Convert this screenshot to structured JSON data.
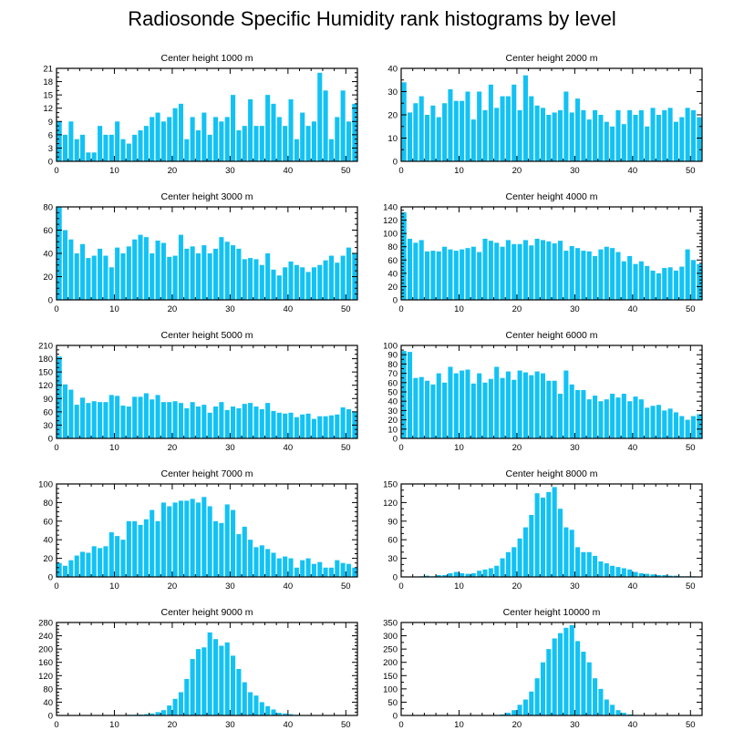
{
  "title": "Radiosonde Specific Humidity rank histograms by level",
  "colors": {
    "bar": "#12c2f4",
    "axis": "#000000",
    "background": "#ffffff"
  },
  "chart_data": [
    {
      "type": "bar",
      "title": "Center height 1000 m",
      "xlim": [
        0,
        52
      ],
      "ylim": [
        0,
        21
      ],
      "xticks": [
        0,
        10,
        20,
        30,
        40,
        50
      ],
      "yticks": [
        0,
        3,
        6,
        9,
        12,
        15,
        18,
        21
      ],
      "values": [
        9,
        6,
        9,
        5,
        6,
        2,
        2,
        8,
        6,
        6,
        9,
        5,
        4,
        6,
        7,
        8,
        10,
        11,
        9,
        10,
        12,
        13,
        5,
        10,
        7,
        11,
        6,
        10,
        9,
        10,
        15,
        7,
        8,
        14,
        8,
        8,
        15,
        13,
        10,
        8,
        14,
        5,
        11,
        8,
        9,
        20,
        16,
        5,
        10,
        16,
        9,
        13
      ]
    },
    {
      "type": "bar",
      "title": "Center height 2000 m",
      "xlim": [
        0,
        52
      ],
      "ylim": [
        0,
        40
      ],
      "xticks": [
        0,
        10,
        20,
        30,
        40,
        50
      ],
      "yticks": [
        0,
        10,
        20,
        30,
        40
      ],
      "values": [
        34,
        21,
        25,
        28,
        20,
        24,
        19,
        25,
        31,
        26,
        26,
        30,
        18,
        30,
        22,
        33,
        23,
        28,
        28,
        33,
        22,
        37,
        28,
        24,
        23,
        20,
        21,
        22,
        30,
        21,
        27,
        22,
        18,
        22,
        20,
        17,
        15,
        22,
        16,
        22,
        20,
        22,
        15,
        23,
        20,
        22,
        23,
        17,
        19,
        23,
        22,
        19
      ]
    },
    {
      "type": "bar",
      "title": "Center height 3000 m",
      "xlim": [
        0,
        52
      ],
      "ylim": [
        0,
        80
      ],
      "xticks": [
        0,
        10,
        20,
        30,
        40,
        50
      ],
      "yticks": [
        0,
        20,
        40,
        60,
        80
      ],
      "values": [
        80,
        60,
        52,
        40,
        48,
        36,
        38,
        44,
        38,
        28,
        45,
        40,
        46,
        52,
        56,
        54,
        40,
        51,
        49,
        37,
        38,
        56,
        44,
        46,
        40,
        47,
        40,
        44,
        54,
        50,
        47,
        44,
        35,
        36,
        35,
        30,
        40,
        26,
        21,
        28,
        33,
        30,
        28,
        24,
        28,
        30,
        34,
        38,
        32,
        38,
        45,
        40
      ]
    },
    {
      "type": "bar",
      "title": "Center height 4000 m",
      "xlim": [
        0,
        52
      ],
      "ylim": [
        0,
        140
      ],
      "xticks": [
        0,
        10,
        20,
        30,
        40,
        50
      ],
      "yticks": [
        0,
        20,
        40,
        60,
        80,
        100,
        120,
        140
      ],
      "values": [
        132,
        92,
        86,
        90,
        73,
        74,
        73,
        80,
        76,
        74,
        76,
        78,
        80,
        72,
        92,
        89,
        86,
        80,
        90,
        84,
        84,
        90,
        82,
        92,
        90,
        88,
        85,
        89,
        74,
        81,
        78,
        74,
        73,
        66,
        76,
        80,
        78,
        72,
        58,
        66,
        54,
        58,
        51,
        44,
        40,
        48,
        49,
        44,
        50,
        76,
        60,
        54
      ]
    },
    {
      "type": "bar",
      "title": "Center height 5000 m",
      "xlim": [
        0,
        52
      ],
      "ylim": [
        0,
        210
      ],
      "xticks": [
        0,
        10,
        20,
        30,
        40,
        50
      ],
      "yticks": [
        0,
        30,
        60,
        90,
        120,
        150,
        180,
        210
      ],
      "values": [
        185,
        122,
        110,
        76,
        92,
        80,
        84,
        82,
        82,
        98,
        96,
        74,
        72,
        94,
        94,
        102,
        88,
        98,
        82,
        82,
        84,
        80,
        68,
        82,
        72,
        76,
        58,
        72,
        82,
        64,
        72,
        68,
        78,
        80,
        72,
        66,
        80,
        62,
        58,
        56,
        58,
        48,
        54,
        56,
        44,
        50,
        50,
        52,
        54,
        70,
        66,
        60
      ]
    },
    {
      "type": "bar",
      "title": "Center height 6000 m",
      "xlim": [
        0,
        52
      ],
      "ylim": [
        0,
        100
      ],
      "xticks": [
        0,
        10,
        20,
        30,
        40,
        50
      ],
      "yticks": [
        0,
        10,
        20,
        30,
        40,
        50,
        60,
        70,
        80,
        90,
        100
      ],
      "values": [
        94,
        93,
        65,
        66,
        62,
        58,
        70,
        60,
        77,
        70,
        73,
        74,
        59,
        70,
        60,
        64,
        77,
        65,
        72,
        63,
        73,
        71,
        68,
        72,
        70,
        62,
        62,
        48,
        73,
        58,
        52,
        52,
        42,
        46,
        40,
        42,
        48,
        44,
        48,
        40,
        45,
        42,
        33,
        35,
        36,
        30,
        32,
        28,
        24,
        20,
        24,
        26
      ]
    },
    {
      "type": "bar",
      "title": "Center height 7000 m",
      "xlim": [
        0,
        52
      ],
      "ylim": [
        0,
        100
      ],
      "xticks": [
        0,
        10,
        20,
        30,
        40,
        50
      ],
      "yticks": [
        0,
        20,
        40,
        60,
        80,
        100
      ],
      "values": [
        15,
        12,
        18,
        23,
        27,
        26,
        33,
        31,
        33,
        48,
        44,
        40,
        60,
        60,
        56,
        62,
        72,
        60,
        80,
        76,
        80,
        82,
        82,
        84,
        80,
        86,
        76,
        60,
        58,
        78,
        72,
        46,
        54,
        40,
        32,
        34,
        30,
        26,
        20,
        22,
        20,
        10,
        18,
        20,
        14,
        16,
        10,
        10,
        18,
        15,
        14,
        10
      ]
    },
    {
      "type": "bar",
      "title": "Center height 8000 m",
      "xlim": [
        0,
        52
      ],
      "ylim": [
        0,
        150
      ],
      "xticks": [
        0,
        10,
        20,
        30,
        40,
        50
      ],
      "yticks": [
        0,
        30,
        60,
        90,
        120,
        150
      ],
      "values": [
        0,
        0,
        0,
        1,
        2,
        1,
        3,
        3,
        6,
        8,
        6,
        5,
        6,
        10,
        12,
        14,
        18,
        30,
        40,
        48,
        62,
        80,
        100,
        135,
        128,
        137,
        145,
        110,
        80,
        76,
        48,
        40,
        40,
        34,
        25,
        22,
        18,
        16,
        14,
        12,
        8,
        6,
        5,
        4,
        3,
        3,
        2,
        2,
        1,
        1,
        1,
        0
      ]
    },
    {
      "type": "bar",
      "title": "Center height 9000 m",
      "xlim": [
        0,
        52
      ],
      "ylim": [
        0,
        280
      ],
      "xticks": [
        0,
        10,
        20,
        30,
        40,
        50
      ],
      "yticks": [
        0,
        40,
        80,
        120,
        160,
        200,
        240,
        280
      ],
      "values": [
        0,
        0,
        0,
        0,
        0,
        0,
        0,
        0,
        0,
        0,
        0,
        0,
        2,
        2,
        3,
        4,
        6,
        10,
        16,
        30,
        50,
        70,
        110,
        170,
        200,
        205,
        250,
        230,
        210,
        220,
        180,
        140,
        100,
        70,
        60,
        40,
        28,
        18,
        8,
        6,
        4,
        2,
        1,
        1,
        0,
        0,
        0,
        0,
        1,
        1,
        1,
        0
      ]
    },
    {
      "type": "bar",
      "title": "Center height 10000 m",
      "xlim": [
        0,
        52
      ],
      "ylim": [
        0,
        350
      ],
      "xticks": [
        0,
        10,
        20,
        30,
        40,
        50
      ],
      "yticks": [
        0,
        50,
        100,
        150,
        200,
        250,
        300,
        350
      ],
      "values": [
        0,
        0,
        0,
        0,
        0,
        0,
        0,
        0,
        0,
        0,
        0,
        0,
        0,
        0,
        0,
        1,
        2,
        4,
        10,
        20,
        40,
        60,
        90,
        140,
        200,
        250,
        290,
        310,
        330,
        340,
        280,
        240,
        200,
        140,
        100,
        60,
        40,
        20,
        10,
        4,
        2,
        1,
        0,
        0,
        0,
        0,
        0,
        0,
        0,
        0,
        0,
        0
      ]
    }
  ]
}
